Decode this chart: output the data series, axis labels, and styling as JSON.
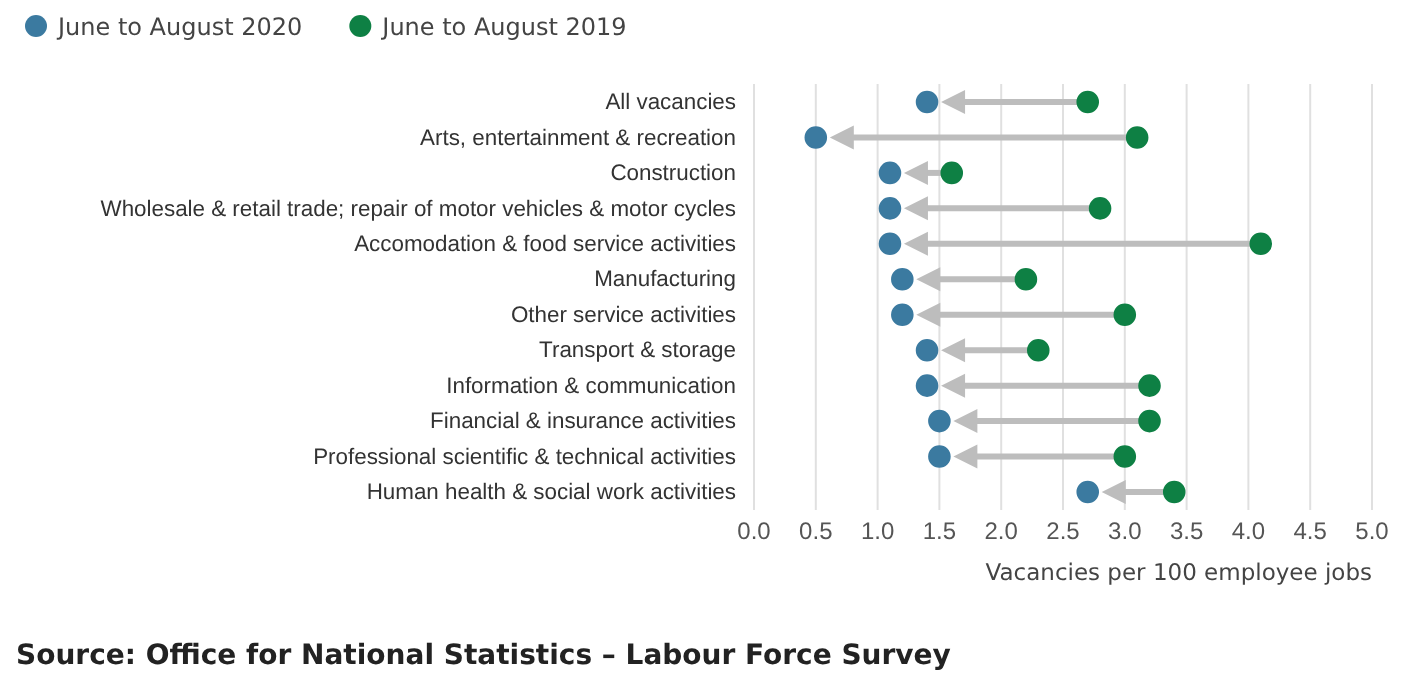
{
  "chart_data": {
    "type": "scatter",
    "categories": [
      "All vacancies",
      "Arts, entertainment & recreation",
      "Construction",
      "Wholesale & retail trade; repair of motor vehicles & motor cycles",
      "Accomodation & food service activities",
      "Manufacturing",
      "Other service activities",
      "Transport & storage",
      "Information & communication",
      "Financial & insurance activities",
      "Professional scientific & technical activities",
      "Human health & social work activities"
    ],
    "orientation": "horizontal",
    "series": [
      {
        "name": "June to August 2020",
        "color": "#3b7aa0",
        "values": [
          1.4,
          0.5,
          1.1,
          1.1,
          1.1,
          1.2,
          1.2,
          1.4,
          1.4,
          1.5,
          1.5,
          2.7
        ]
      },
      {
        "name": "June to August 2019",
        "color": "#0e8044",
        "values": [
          2.7,
          3.1,
          1.6,
          2.8,
          4.1,
          2.2,
          3.0,
          2.3,
          3.2,
          3.2,
          3.0,
          3.4
        ]
      }
    ],
    "xlim": [
      0,
      5
    ],
    "xticks": [
      {
        "value": 0,
        "label": "0.0"
      },
      0.5,
      {
        "value": 1,
        "label": "1.0"
      },
      1.5,
      {
        "value": 2,
        "label": "2.0"
      },
      2.5,
      {
        "value": 3,
        "label": "3.0"
      },
      3.5,
      {
        "value": 4,
        "label": "4.0"
      },
      4.5,
      {
        "value": 5,
        "label": "5.0"
      }
    ],
    "xlabel": "Vacancies per 100 employee jobs",
    "grid": "x",
    "legend": "top left",
    "marker": "circle",
    "annotations": [
      "Source: Office for National Statistics – Labour Force Survey"
    ]
  }
}
